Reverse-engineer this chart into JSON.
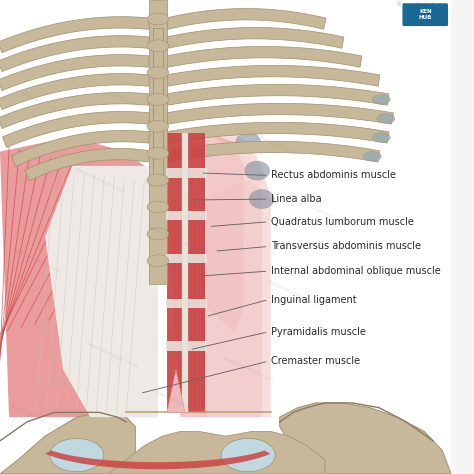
{
  "bg_color": "#f5f5f5",
  "bone_fill": "#c8b89a",
  "bone_edge": "#a09070",
  "bone_shadow": "#8a7860",
  "cartilage_color": "#8faab0",
  "muscle_red": "#cc4444",
  "muscle_mid": "#d96060",
  "muscle_light": "#e89090",
  "muscle_pale": "#efb8b8",
  "muscle_very_pale": "#f5d5d5",
  "apon_white": "#f0eeea",
  "apon_stripe": "#d8d4cc",
  "linea_color": "#e8e4dc",
  "pelvis_blue": "#7090a0",
  "label_color": "#2a2a2a",
  "line_color": "#666666",
  "label_fontsize": 7.0,
  "badge_color": "#1a6896",
  "labels": [
    {
      "text": "Rectus abdominis muscle",
      "xt": 0.595,
      "yt": 0.37,
      "xl": 0.445,
      "yl": 0.365
    },
    {
      "text": "Linea alba",
      "xt": 0.595,
      "yt": 0.42,
      "xl": 0.42,
      "yl": 0.422
    },
    {
      "text": "Quadratus lumborum muscle",
      "xt": 0.595,
      "yt": 0.468,
      "xl": 0.462,
      "yl": 0.478
    },
    {
      "text": "Transversus abdominis muscle",
      "xt": 0.595,
      "yt": 0.52,
      "xl": 0.475,
      "yl": 0.53
    },
    {
      "text": "Internal abdominal oblique muscle",
      "xt": 0.595,
      "yt": 0.572,
      "xl": 0.448,
      "yl": 0.582
    },
    {
      "text": "Inguinal ligament",
      "xt": 0.595,
      "yt": 0.632,
      "xl": 0.455,
      "yl": 0.668
    },
    {
      "text": "Pyramidalis muscle",
      "xt": 0.595,
      "yt": 0.7,
      "xl": 0.42,
      "yl": 0.738
    },
    {
      "text": "Cremaster muscle",
      "xt": 0.595,
      "yt": 0.762,
      "xl": 0.31,
      "yl": 0.83
    }
  ]
}
